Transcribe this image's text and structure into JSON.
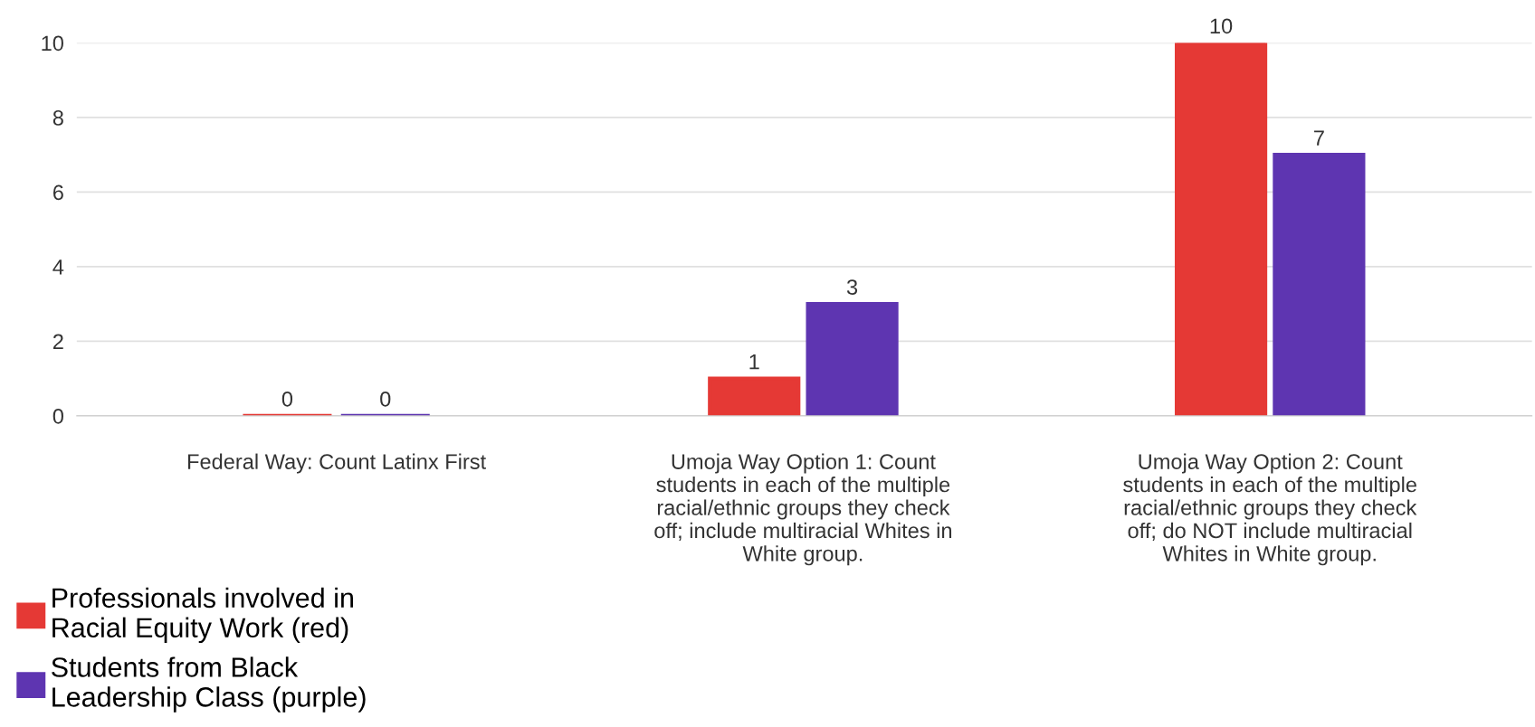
{
  "chart_data": {
    "type": "bar",
    "categories": [
      "Federal Way: Count Latinx First",
      "Umoja Way Option 1: Count\nstudents in each of the multiple\nracial/ethnic groups they check\noff; include multiracial Whites in\nWhite group.",
      "Umoja Way Option 2: Count\nstudents in each of the multiple\nracial/ethnic groups they check\noff; do NOT include multiracial\nWhites in White group."
    ],
    "series": [
      {
        "name": "Professionals involved in\nRacial Equity Work (red)",
        "color": "#e53935",
        "values": [
          0,
          1,
          10
        ]
      },
      {
        "name": "Students from Black\nLeadership Class (purple)",
        "color": "#5e35b1",
        "values": [
          0,
          3,
          7
        ]
      }
    ],
    "ylim": [
      0,
      10
    ],
    "yticks": [
      0,
      2,
      4,
      6,
      8,
      10
    ],
    "grid": "y",
    "data_labels": true,
    "legend": "bottom left"
  }
}
